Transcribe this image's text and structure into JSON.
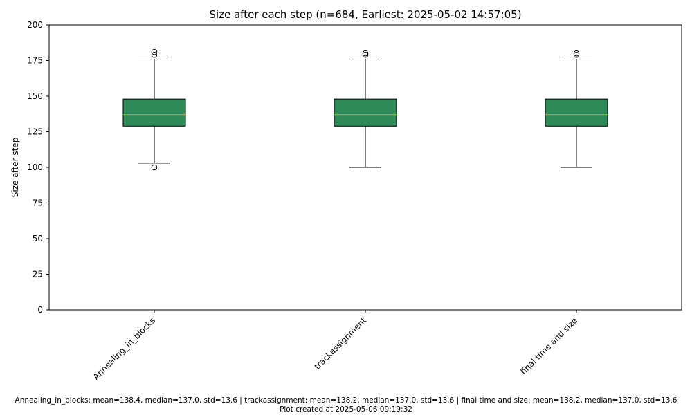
{
  "chart_data": {
    "type": "box",
    "title": "Size after each step (n=684, Earliest: 2025-05-02 14:57:05)",
    "xlabel": "",
    "ylabel": "Size after step",
    "ylim": [
      0,
      200
    ],
    "yticks": [
      0,
      25,
      50,
      75,
      100,
      125,
      150,
      175,
      200
    ],
    "grid": false,
    "colors": {
      "box_fill": "#2e8b57",
      "median": "#ff8c00",
      "whisker": "#000000"
    },
    "categories": [
      "Annealing_in_blocks",
      "trackassignment",
      "final time and size"
    ],
    "boxes": [
      {
        "category": "Annealing_in_blocks",
        "q1": 129,
        "median": 137,
        "q3": 148,
        "whisker_low": 103,
        "whisker_high": 176,
        "outliers": [
          100,
          179,
          181
        ]
      },
      {
        "category": "trackassignment",
        "q1": 129,
        "median": 137,
        "q3": 148,
        "whisker_low": 100,
        "whisker_high": 176,
        "outliers": [
          179,
          180
        ]
      },
      {
        "category": "final time and size",
        "q1": 129,
        "median": 137,
        "q3": 148,
        "whisker_low": 100,
        "whisker_high": 176,
        "outliers": [
          179,
          180
        ]
      }
    ]
  },
  "footer": {
    "text": "Annealing_in_blocks: mean=138.4, median=137.0, std=13.6 | trackassignment: mean=138.2, median=137.0, std=13.6 | final time and size: mean=138.2, median=137.0, std=13.6    Plot created at 2025-05-06 09:19:32"
  }
}
